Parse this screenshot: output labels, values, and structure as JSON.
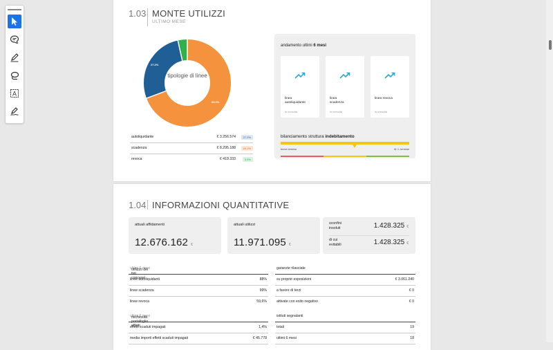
{
  "toolbar": {
    "tools": [
      {
        "icon": "pointer-icon",
        "active": true
      },
      {
        "icon": "comment-icon",
        "active": false
      },
      {
        "icon": "pen-icon",
        "active": false
      },
      {
        "icon": "lasso-icon",
        "active": false
      },
      {
        "icon": "text-box-icon",
        "active": false
      },
      {
        "icon": "signature-icon",
        "active": false
      }
    ]
  },
  "section_103": {
    "number": "1.03",
    "title": "MONTE UTILIZZI",
    "subtitle": "ULTIMO MESE",
    "donut_center": "tipologie di linee",
    "legend": [
      {
        "name": "autoliquidante",
        "value": "€ 3.256.574",
        "pct": "27,2%",
        "color": "#1f5f95"
      },
      {
        "name": "scadenza",
        "value": "€ 8.295.188",
        "pct": "69,3%",
        "color": "#f5923e"
      },
      {
        "name": "revoca",
        "value": "€ 419.333",
        "pct": "3,5%",
        "color": "#2fb14b"
      }
    ],
    "donut_labels": {
      "autoliquidante": "27.2%",
      "scadenza": "69.3%"
    },
    "trend_title_prefix": "andamento ultimi ",
    "trend_title_bold": "6 mesi",
    "trend_cards": [
      {
        "name": "linea autoliquidante",
        "status": "in crescita",
        "icon": "trending-up-icon"
      },
      {
        "name": "linea scadenza",
        "status": "in crescita",
        "icon": "trending-up-icon"
      },
      {
        "name": "linea revoca",
        "status": "in crescita",
        "icon": "trending-up-icon"
      }
    ],
    "bilanciamento_prefix": "bilanciamento struttura ",
    "bilanciamento_bold": "indebitamento",
    "bil_left": "breve termine",
    "bil_right": "M / L termine",
    "colors": {
      "red": "#e65c5c",
      "yellow": "#f5c518",
      "green": "#7dbb42",
      "accent": "#1a73e8"
    }
  },
  "chart_data": {
    "type": "pie",
    "title": "tipologie di linee",
    "categories": [
      "autoliquidante",
      "scadenza",
      "revoca"
    ],
    "values": [
      27.2,
      69.3,
      3.5
    ]
  },
  "section_104": {
    "number": "1.04",
    "title": "INFORMAZIONI QUANTITATIVE",
    "cards": [
      {
        "label": "attuali affidamenti",
        "value": "12.676.162",
        "currency": "€"
      },
      {
        "label": "attuali utilizzi",
        "value": "11.971.095",
        "currency": "€"
      }
    ],
    "sconfini": {
      "label1": "sconfini",
      "label2": "insoluti",
      "value": "1.428.325",
      "currency": "€"
    },
    "evitabili": {
      "label1": "di cui",
      "label2": "evitabili",
      "value": "1.428.325",
      "currency": "€"
    },
    "utilizzo": {
      "title": "utilizzo dei fidi concessi",
      "title_suffix": "ultimi 6 mesi",
      "rows": [
        {
          "k": "linee autoliquidanti",
          "v": "88%"
        },
        {
          "k": "linee scadenza",
          "v": "99%"
        },
        {
          "k": "linee revoca",
          "v": "59,6%"
        }
      ]
    },
    "garanzie": {
      "title": "garanzie rilasciate",
      "rows": [
        {
          "k": "su proprie esposizioni",
          "v": "€ 3.061.240"
        },
        {
          "k": "a favore di terzi",
          "v": "€ 0"
        },
        {
          "k": "attivate con esito negativo",
          "v": "€ 0"
        }
      ]
    },
    "rischiosita": {
      "title": "rischiosità portafoglio effetti",
      "title_suffix": "ultimi 6 mesi",
      "rows": [
        {
          "k": "effetti scaduti impagati",
          "v": "1,4%"
        },
        {
          "k": "media importi effetti scaduti impagati",
          "v": "€ 45.778"
        }
      ]
    },
    "istituti": {
      "title": "istituti segnalanti",
      "rows": [
        {
          "k": "totali",
          "v": "19"
        },
        {
          "k": "ultimi 6 mesi",
          "v": "18"
        }
      ]
    }
  }
}
